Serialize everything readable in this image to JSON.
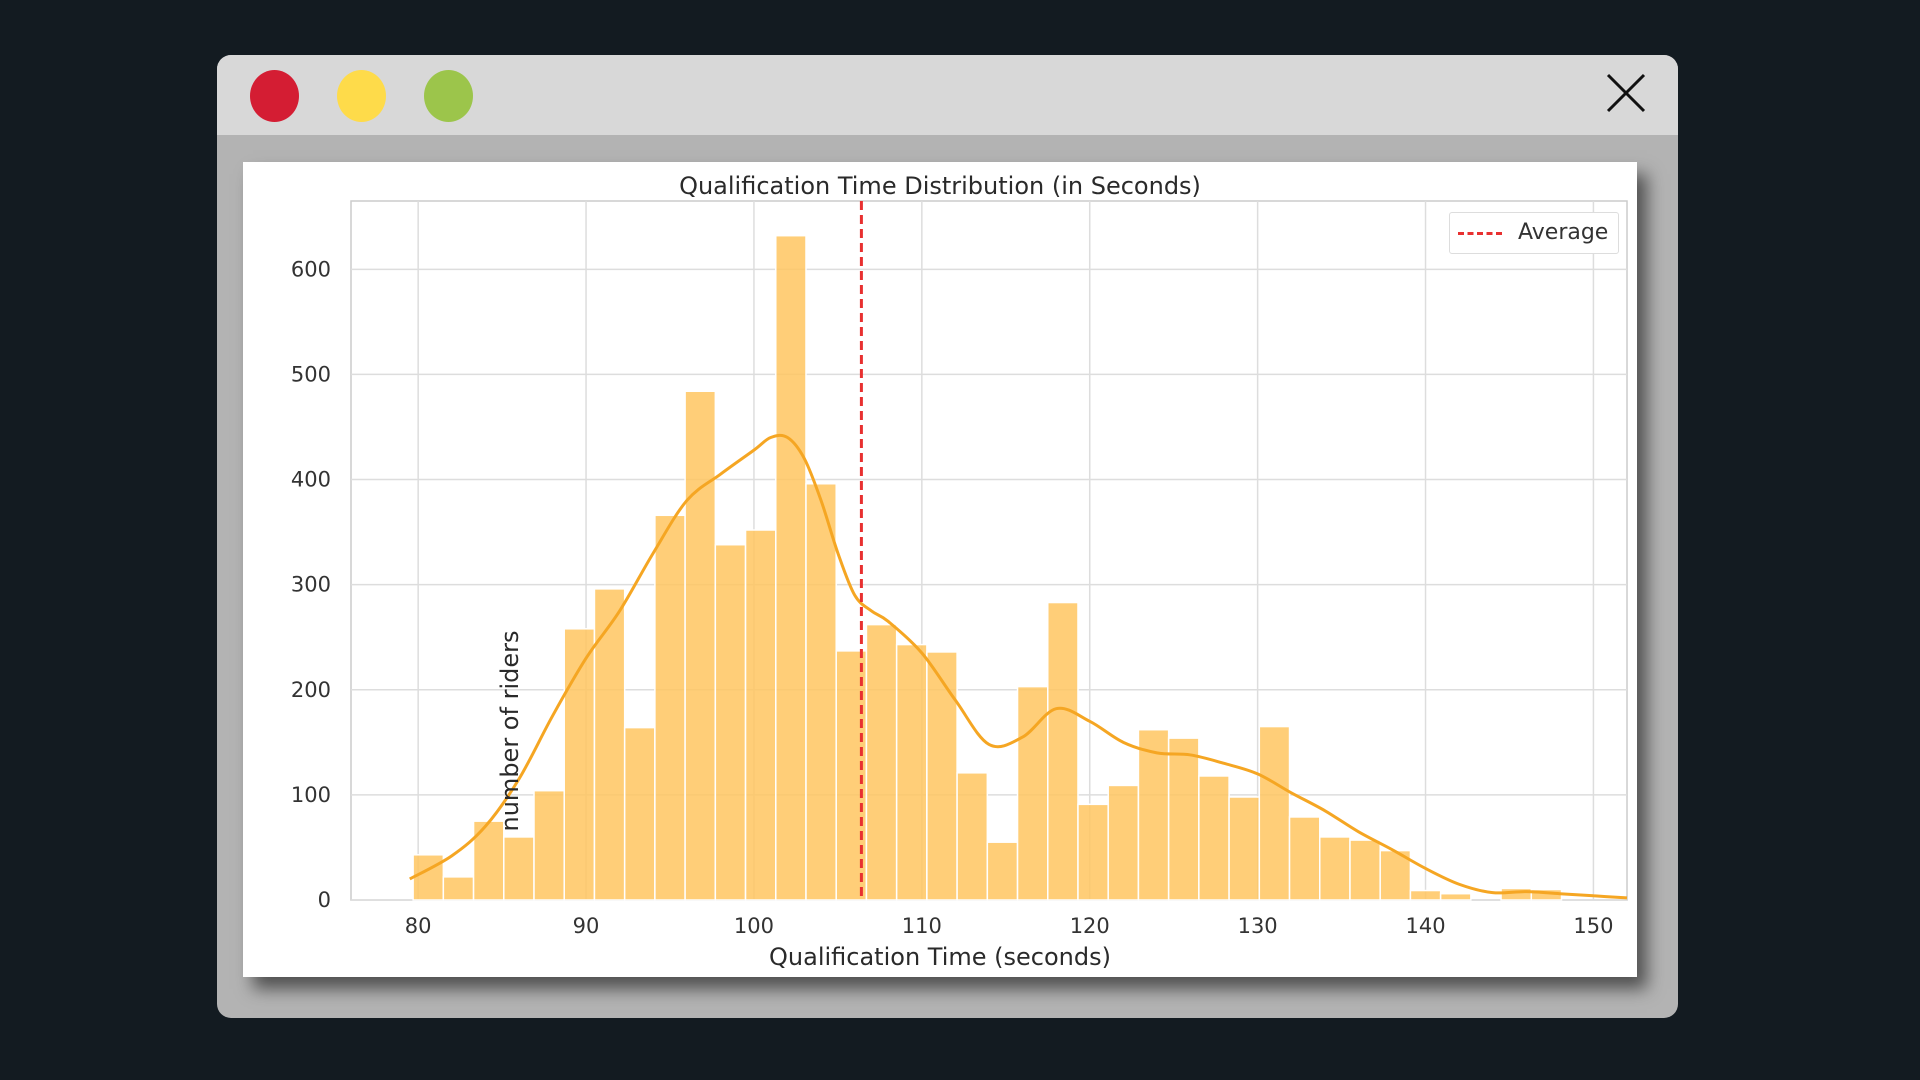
{
  "window": {
    "buttons": [
      "close",
      "minimize",
      "maximize"
    ],
    "colors": {
      "close": "#d41d33",
      "minimize": "#fedb4a",
      "maximize": "#9cc54b"
    },
    "close_icon": "close-icon"
  },
  "chart_data": {
    "type": "bar",
    "title": "Qualification Time Distribution (in Seconds)",
    "xlabel": "Qualification Time (seconds)",
    "ylabel": "number of riders",
    "xlim": [
      76,
      152
    ],
    "ylim": [
      0,
      665
    ],
    "xticks": [
      80,
      90,
      100,
      110,
      120,
      130,
      140,
      150
    ],
    "yticks": [
      0,
      100,
      200,
      300,
      400,
      500,
      600
    ],
    "grid": true,
    "legend_position": "top-right",
    "bin_edges": [
      79.7,
      81.5,
      83.3,
      85.1,
      86.9,
      88.7,
      90.5,
      92.3,
      94.1,
      95.9,
      97.7,
      99.5,
      101.3,
      103.1,
      104.9,
      106.7,
      108.5,
      110.3,
      112.1,
      113.9,
      115.7,
      117.5,
      119.3,
      121.1,
      122.9,
      124.7,
      126.5,
      128.3,
      130.1,
      131.9,
      133.7,
      135.5,
      137.3,
      139.1,
      140.9,
      142.7,
      144.5,
      146.3,
      148.1
    ],
    "counts": [
      43,
      22,
      75,
      60,
      104,
      258,
      296,
      164,
      366,
      484,
      338,
      352,
      632,
      396,
      237,
      262,
      243,
      236,
      121,
      55,
      203,
      283,
      91,
      109,
      162,
      154,
      118,
      98,
      165,
      79,
      60,
      57,
      47,
      9,
      6,
      0,
      11,
      10
    ],
    "kde": {
      "x": [
        79.5,
        82,
        84,
        86,
        88,
        90,
        92,
        94,
        96,
        98,
        100,
        101,
        102,
        103,
        104,
        105,
        106,
        107,
        108,
        110,
        112,
        114,
        116,
        118,
        120,
        122,
        124,
        126,
        128,
        130,
        132,
        134,
        136,
        138,
        140,
        142,
        144,
        146,
        148,
        150,
        152
      ],
      "y": [
        20,
        42,
        70,
        115,
        175,
        230,
        275,
        330,
        380,
        405,
        428,
        440,
        440,
        420,
        380,
        330,
        290,
        275,
        265,
        235,
        190,
        148,
        155,
        182,
        170,
        150,
        140,
        138,
        130,
        120,
        102,
        85,
        65,
        48,
        30,
        15,
        7,
        8,
        6,
        4,
        2
      ]
    },
    "average_line": {
      "x": 106.4,
      "label": "Average",
      "color": "#e83030"
    },
    "bar_color": "#ffc560",
    "kde_color": "#f5a623"
  }
}
